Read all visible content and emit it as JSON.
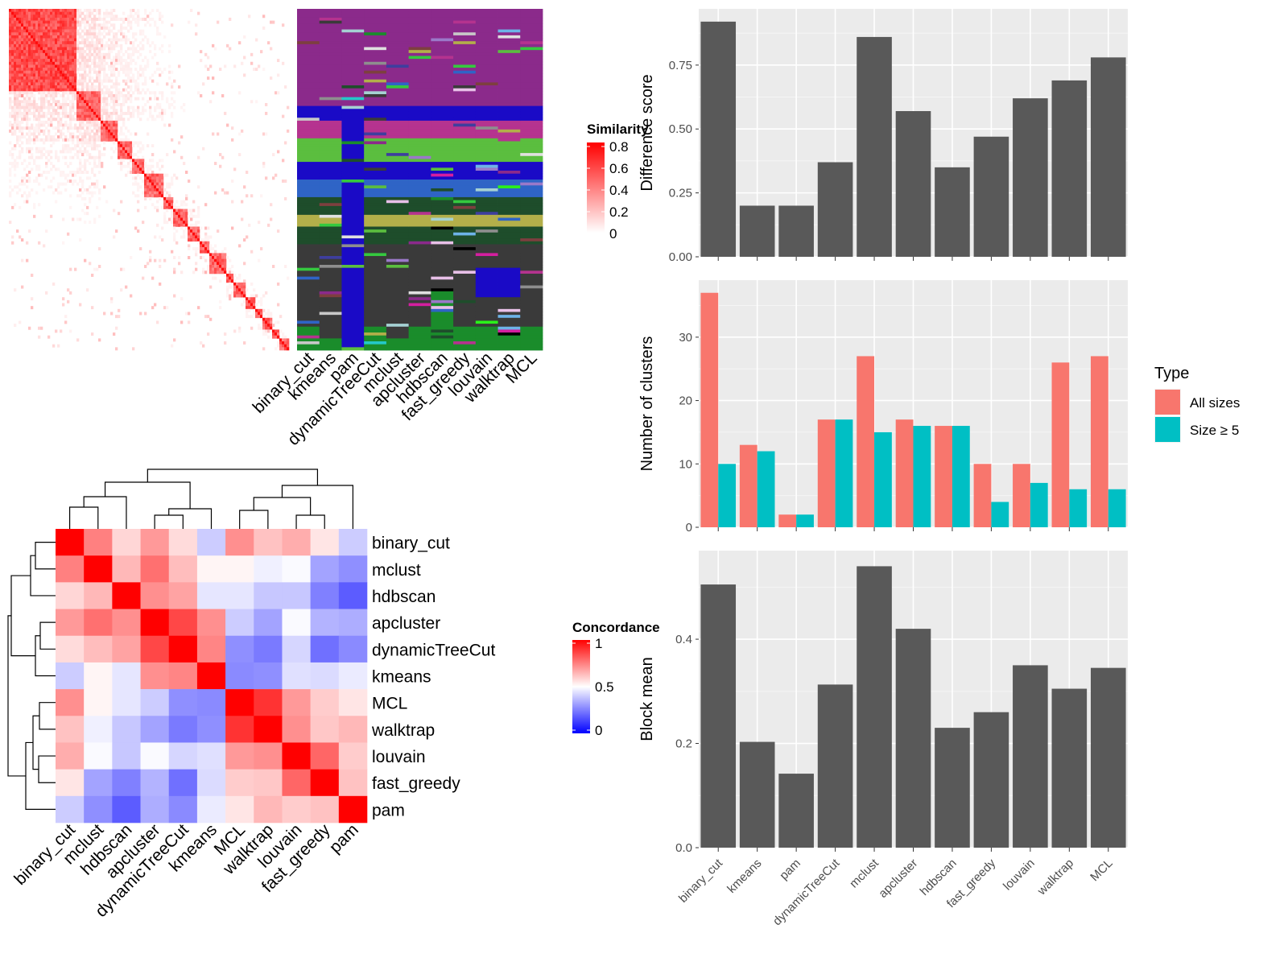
{
  "methods_top": [
    "binary_cut",
    "kmeans",
    "pam",
    "dynamicTreeCut",
    "mclust",
    "apcluster",
    "hdbscan",
    "fast_greedy",
    "louvain",
    "walktrap",
    "MCL"
  ],
  "similarity_legend": {
    "title": "Similarity",
    "ticks": [
      "0.8",
      "0.6",
      "0.4",
      "0.2",
      "0"
    ]
  },
  "concordance_legend": {
    "title": "Concordance",
    "ticks": [
      "1",
      "0.5",
      "0"
    ]
  },
  "concordance": {
    "row_order": [
      "binary_cut",
      "mclust",
      "hdbscan",
      "apcluster",
      "dynamicTreeCut",
      "kmeans",
      "MCL",
      "walktrap",
      "louvain",
      "fast_greedy",
      "pam"
    ],
    "col_order": [
      "binary_cut",
      "mclust",
      "hdbscan",
      "apcluster",
      "dynamicTreeCut",
      "kmeans",
      "MCL",
      "walktrap",
      "louvain",
      "fast_greedy",
      "pam"
    ],
    "matrix": [
      [
        1.0,
        0.75,
        0.58,
        0.7,
        0.57,
        0.4,
        0.72,
        0.62,
        0.66,
        0.55,
        0.4
      ],
      [
        0.75,
        1.0,
        0.64,
        0.78,
        0.63,
        0.52,
        0.52,
        0.47,
        0.49,
        0.32,
        0.28
      ],
      [
        0.58,
        0.64,
        1.0,
        0.72,
        0.68,
        0.45,
        0.45,
        0.39,
        0.39,
        0.25,
        0.18
      ],
      [
        0.7,
        0.78,
        0.72,
        1.0,
        0.86,
        0.72,
        0.4,
        0.32,
        0.49,
        0.35,
        0.34
      ],
      [
        0.57,
        0.63,
        0.68,
        0.86,
        1.0,
        0.74,
        0.28,
        0.24,
        0.42,
        0.22,
        0.27
      ],
      [
        0.4,
        0.52,
        0.45,
        0.72,
        0.74,
        1.0,
        0.27,
        0.28,
        0.44,
        0.43,
        0.46
      ],
      [
        0.72,
        0.52,
        0.45,
        0.4,
        0.28,
        0.27,
        1.0,
        0.9,
        0.7,
        0.6,
        0.55
      ],
      [
        0.62,
        0.47,
        0.39,
        0.32,
        0.24,
        0.28,
        0.9,
        1.0,
        0.72,
        0.61,
        0.64
      ],
      [
        0.66,
        0.49,
        0.39,
        0.49,
        0.42,
        0.44,
        0.7,
        0.72,
        1.0,
        0.8,
        0.6
      ],
      [
        0.55,
        0.32,
        0.25,
        0.35,
        0.22,
        0.43,
        0.6,
        0.61,
        0.8,
        1.0,
        0.62
      ],
      [
        0.4,
        0.28,
        0.18,
        0.34,
        0.27,
        0.46,
        0.55,
        0.64,
        0.6,
        0.62,
        1.0
      ]
    ]
  },
  "chart_data": [
    {
      "type": "bar",
      "ylabel": "Difference score",
      "categories": [
        "binary_cut",
        "kmeans",
        "pam",
        "dynamicTreeCut",
        "mclust",
        "apcluster",
        "hdbscan",
        "fast_greedy",
        "louvain",
        "walktrap",
        "MCL"
      ],
      "values": [
        0.92,
        0.2,
        0.2,
        0.37,
        0.86,
        0.57,
        0.35,
        0.47,
        0.62,
        0.69,
        0.78
      ],
      "ylim": [
        0,
        0.97
      ],
      "yticks": [
        "0.00",
        "0.25",
        "0.50",
        "0.75"
      ],
      "ytick_values": [
        0,
        0.25,
        0.5,
        0.75
      ],
      "grid": true
    },
    {
      "type": "bar",
      "ylabel": "Number of clusters",
      "categories": [
        "binary_cut",
        "kmeans",
        "pam",
        "dynamicTreeCut",
        "mclust",
        "apcluster",
        "hdbscan",
        "fast_greedy",
        "louvain",
        "walktrap",
        "MCL"
      ],
      "series": [
        {
          "name": "All sizes",
          "color": "#F8766D",
          "values": [
            37,
            13,
            2,
            17,
            27,
            17,
            16,
            10,
            10,
            26,
            27
          ]
        },
        {
          "name": "Size ≥ 5",
          "color": "#00BFC4",
          "values": [
            10,
            12,
            2,
            17,
            15,
            16,
            16,
            4,
            7,
            6,
            6
          ]
        }
      ],
      "ylim": [
        0,
        39
      ],
      "yticks": [
        "0",
        "10",
        "20",
        "30"
      ],
      "ytick_values": [
        0,
        10,
        20,
        30
      ],
      "legend_title": "Type",
      "legend_position": "right",
      "grid": true
    },
    {
      "type": "bar",
      "ylabel": "Block mean",
      "categories": [
        "binary_cut",
        "kmeans",
        "pam",
        "dynamicTreeCut",
        "mclust",
        "apcluster",
        "hdbscan",
        "fast_greedy",
        "louvain",
        "walktrap",
        "MCL"
      ],
      "values": [
        0.505,
        0.203,
        0.142,
        0.313,
        0.54,
        0.42,
        0.23,
        0.26,
        0.35,
        0.305,
        0.345
      ],
      "ylim": [
        0,
        0.57
      ],
      "yticks": [
        "0.0",
        "0.2",
        "0.4"
      ],
      "ytick_values": [
        0,
        0.2,
        0.4
      ],
      "grid": true
    }
  ]
}
